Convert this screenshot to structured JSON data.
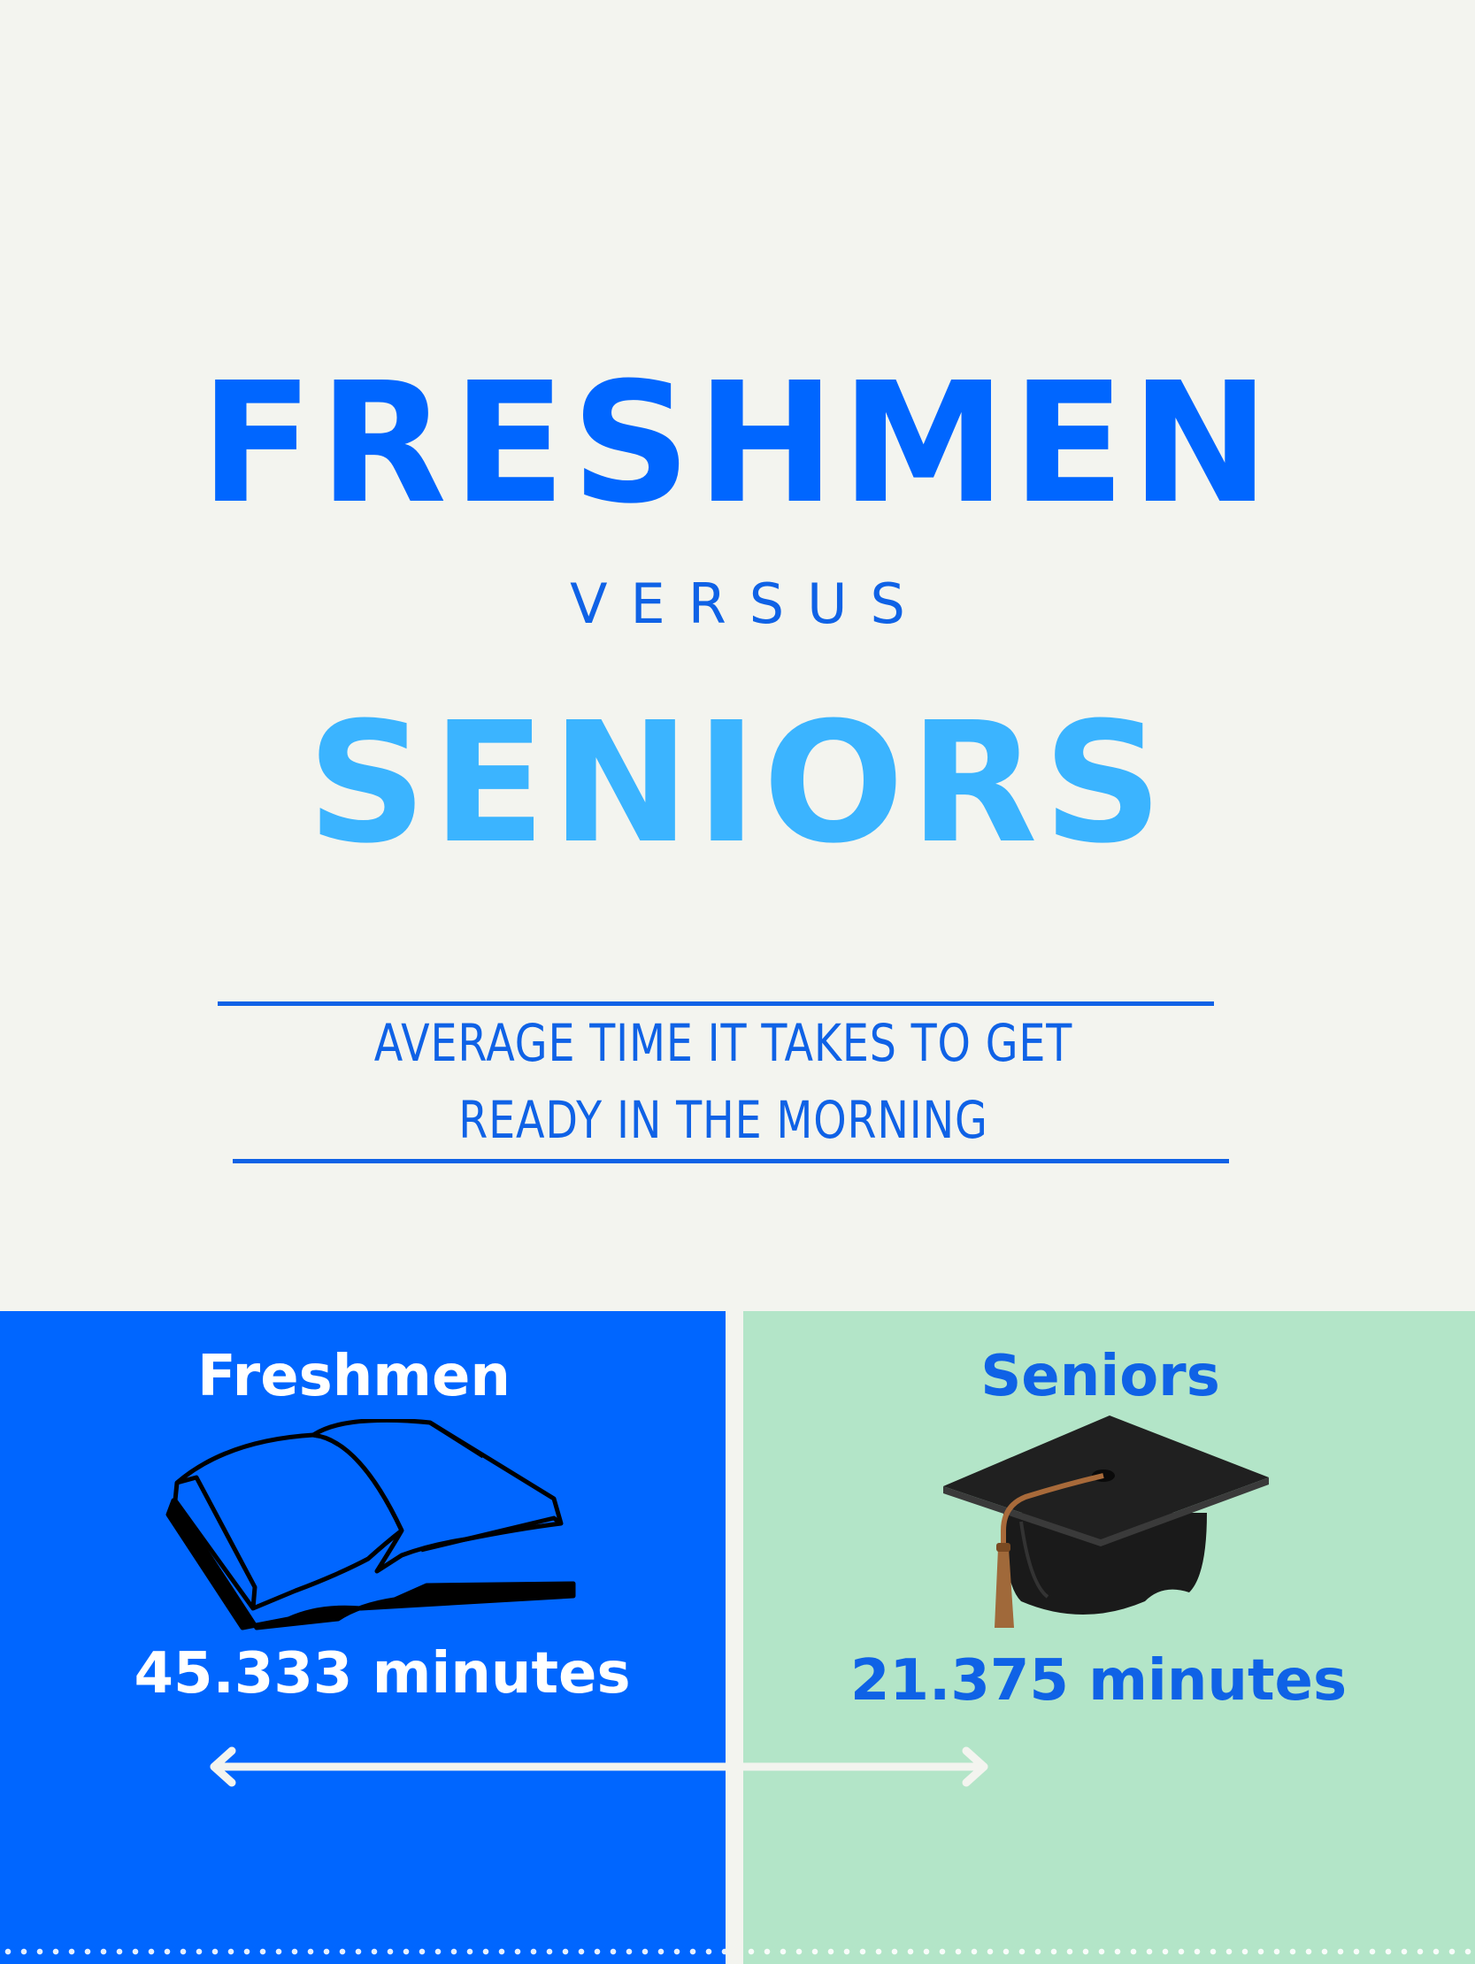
{
  "header": {
    "title_top": "FRESHMEN",
    "versus": "VERSUS",
    "title_bottom": "SENIORS",
    "subtitle": "AVERAGE TIME IT TAKES TO GET READY IN THE MORNING"
  },
  "panels": {
    "freshmen": {
      "label": "Freshmen",
      "value": "45.333 minutes",
      "icon": "book-icon",
      "color": "#0066ff"
    },
    "seniors": {
      "label": "Seniors",
      "value": "21.375 minutes",
      "icon": "graduation-cap-icon",
      "color": "#b3e5c8"
    }
  },
  "colors": {
    "background": "#f3f4ef",
    "primary_blue": "#0066ff",
    "text_blue": "#0f62e6",
    "light_blue": "#3bb4ff",
    "mint": "#b3e5c8"
  }
}
